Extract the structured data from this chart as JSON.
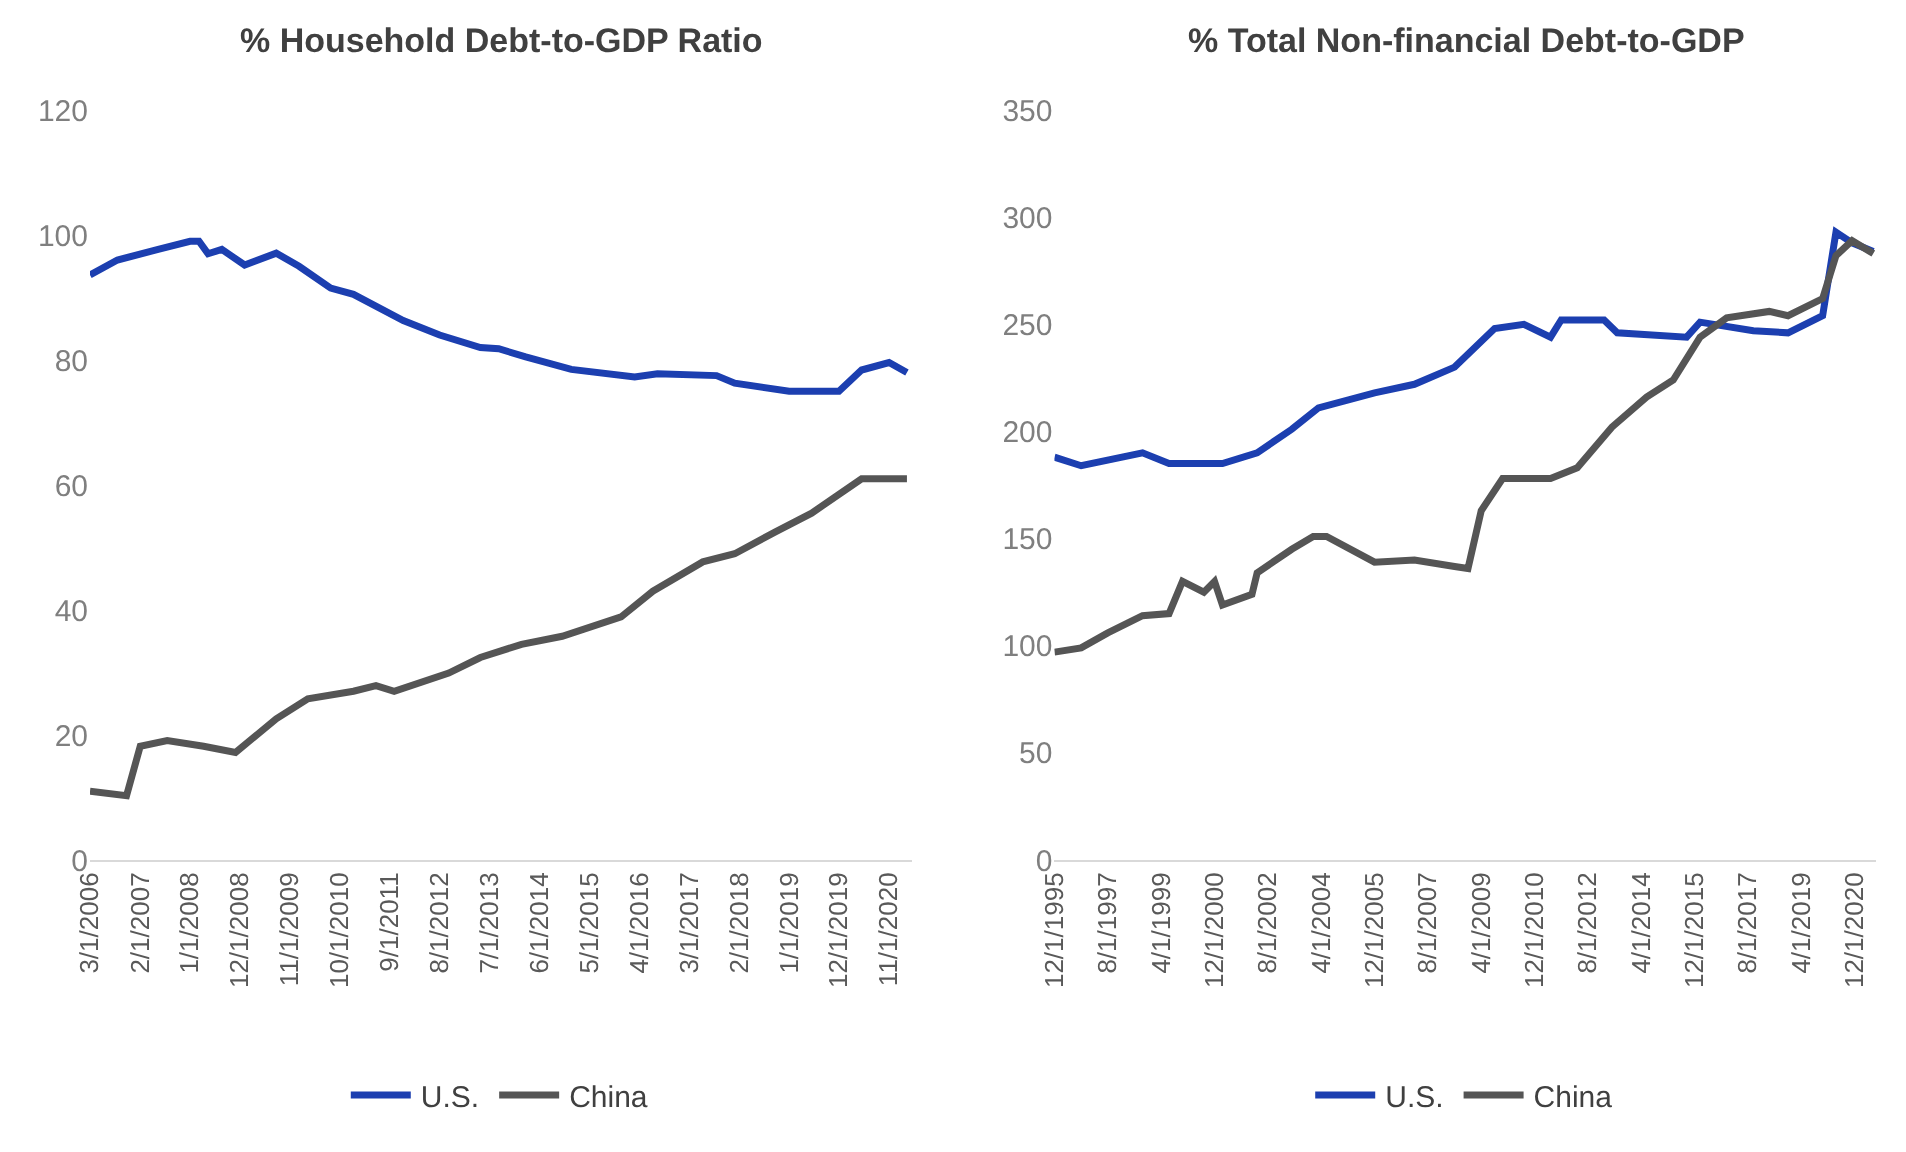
{
  "chart_data": [
    {
      "type": "line",
      "title": "% Household Debt-to-GDP Ratio",
      "legend": "bottom",
      "xlim": [
        "2006-03-01",
        "2021-04-01"
      ],
      "xticks": [
        {
          "value": "2006-03-01",
          "label": "3/1/2006"
        },
        {
          "value": "2007-02-01",
          "label": "2/1/2007"
        },
        {
          "value": "2008-01-01",
          "label": "1/1/2008"
        },
        {
          "value": "2008-12-01",
          "label": "12/1/2008"
        },
        {
          "value": "2009-11-01",
          "label": "11/1/2009"
        },
        {
          "value": "2010-10-01",
          "label": "10/1/2010"
        },
        {
          "value": "2011-09-01",
          "label": "9/1/2011"
        },
        {
          "value": "2012-08-01",
          "label": "8/1/2012"
        },
        {
          "value": "2013-07-01",
          "label": "7/1/2013"
        },
        {
          "value": "2014-06-01",
          "label": "6/1/2014"
        },
        {
          "value": "2015-05-01",
          "label": "5/1/2015"
        },
        {
          "value": "2016-04-01",
          "label": "4/1/2016"
        },
        {
          "value": "2017-03-01",
          "label": "3/1/2017"
        },
        {
          "value": "2018-02-01",
          "label": "2/1/2018"
        },
        {
          "value": "2019-01-01",
          "label": "1/1/2019"
        },
        {
          "value": "2019-12-01",
          "label": "12/1/2019"
        },
        {
          "value": "2020-11-01",
          "label": "11/1/2020"
        }
      ],
      "ylim": [
        0,
        120
      ],
      "yticks": [
        0,
        20,
        40,
        60,
        80,
        100,
        120
      ],
      "series": [
        {
          "name": "U.S.",
          "color": "#1c3fb0",
          "x": [
            "2006-03",
            "2006-09",
            "2007-06",
            "2008-01",
            "2008-03",
            "2008-05",
            "2008-08",
            "2009-01",
            "2009-08",
            "2010-01",
            "2010-08",
            "2011-01",
            "2011-12",
            "2012-08",
            "2013-05",
            "2013-09",
            "2014-03",
            "2015-01",
            "2016-03",
            "2016-08",
            "2017-09",
            "2018-01",
            "2019-01",
            "2019-12",
            "2020-05",
            "2020-11",
            "2021-03"
          ],
          "values": [
            93.6,
            96,
            97.7,
            99,
            99,
            97,
            97.7,
            95.2,
            97.1,
            95,
            91.5,
            90.5,
            86.3,
            84,
            82,
            81.8,
            80.5,
            78.5,
            77.3,
            77.8,
            77.5,
            76.3,
            75,
            75,
            78.4,
            79.6,
            78
          ]
        },
        {
          "name": "China",
          "color": "#555555",
          "x": [
            "2006-03",
            "2006-11",
            "2007-02",
            "2007-08",
            "2008-04",
            "2008-11",
            "2009-08",
            "2010-03",
            "2011-01",
            "2011-06",
            "2011-10",
            "2012-10",
            "2013-05",
            "2014-02",
            "2014-11",
            "2015-12",
            "2016-07",
            "2017-06",
            "2018-01",
            "2018-10",
            "2019-06",
            "2020-05",
            "2021-03"
          ],
          "values": [
            11,
            10.3,
            18.2,
            19.1,
            18.2,
            17.2,
            22.6,
            25.8,
            27,
            27.9,
            27,
            29.9,
            32.4,
            34.5,
            35.8,
            38.9,
            43,
            47.7,
            49,
            52.5,
            55.5,
            61,
            61
          ]
        }
      ]
    },
    {
      "type": "line",
      "title": "% Total Non-financial Debt-to-GDP",
      "legend": "bottom",
      "xlim": [
        "1995-12-01",
        "2021-08-01"
      ],
      "xticks": [
        {
          "value": "1995-12-01",
          "label": "12/1/1995"
        },
        {
          "value": "1997-08-01",
          "label": "8/1/1997"
        },
        {
          "value": "1999-04-01",
          "label": "4/1/1999"
        },
        {
          "value": "2000-12-01",
          "label": "12/1/2000"
        },
        {
          "value": "2002-08-01",
          "label": "8/1/2002"
        },
        {
          "value": "2004-04-01",
          "label": "4/1/2004"
        },
        {
          "value": "2005-12-01",
          "label": "12/1/2005"
        },
        {
          "value": "2007-08-01",
          "label": "8/1/2007"
        },
        {
          "value": "2009-04-01",
          "label": "4/1/2009"
        },
        {
          "value": "2010-12-01",
          "label": "12/1/2010"
        },
        {
          "value": "2012-08-01",
          "label": "8/1/2012"
        },
        {
          "value": "2014-04-01",
          "label": "4/1/2014"
        },
        {
          "value": "2015-12-01",
          "label": "12/1/2015"
        },
        {
          "value": "2017-08-01",
          "label": "8/1/2017"
        },
        {
          "value": "2019-04-01",
          "label": "4/1/2019"
        },
        {
          "value": "2020-12-01",
          "label": "12/1/2020"
        }
      ],
      "ylim": [
        0,
        350
      ],
      "yticks": [
        0,
        50,
        100,
        150,
        200,
        250,
        300,
        350
      ],
      "series": [
        {
          "name": "U.S.",
          "color": "#1c3fb0",
          "x": [
            "1995-12",
            "1996-10",
            "1998-09",
            "1999-07",
            "2001-03",
            "2002-04",
            "2003-05",
            "2004-03",
            "2005-12",
            "2007-03",
            "2008-06",
            "2009-09",
            "2010-08",
            "2011-06",
            "2011-10",
            "2013-02",
            "2013-07",
            "2015-09",
            "2016-02",
            "2017-10",
            "2018-11",
            "2019-12",
            "2020-05",
            "2020-11",
            "2021-07"
          ],
          "values": [
            188,
            184,
            190,
            185,
            185,
            190,
            201,
            211,
            218,
            222,
            230,
            248,
            250,
            244,
            252,
            252,
            246,
            244,
            251,
            247,
            246,
            254,
            293,
            288,
            284
          ]
        },
        {
          "name": "China",
          "color": "#555555",
          "x": [
            "1995-12",
            "1996-10",
            "1997-08",
            "1998-09",
            "1999-07",
            "1999-12",
            "2000-08",
            "2000-12",
            "2001-03",
            "2002-02",
            "2002-04",
            "2003-05",
            "2004-01",
            "2004-06",
            "2005-12",
            "2007-03",
            "2008-06",
            "2008-11",
            "2009-04",
            "2009-12",
            "2011-06",
            "2012-04",
            "2013-05",
            "2014-06",
            "2015-04",
            "2016-02",
            "2016-12",
            "2018-04",
            "2018-11",
            "2019-12",
            "2020-05",
            "2020-11",
            "2021-07"
          ],
          "values": [
            97,
            99,
            106,
            114,
            115,
            130,
            125,
            130,
            119,
            124,
            134,
            145,
            151,
            151,
            139,
            140,
            137,
            136,
            163,
            178,
            178,
            183,
            202,
            216,
            224,
            244,
            253,
            256,
            254,
            262,
            282,
            289,
            283
          ]
        }
      ]
    }
  ]
}
